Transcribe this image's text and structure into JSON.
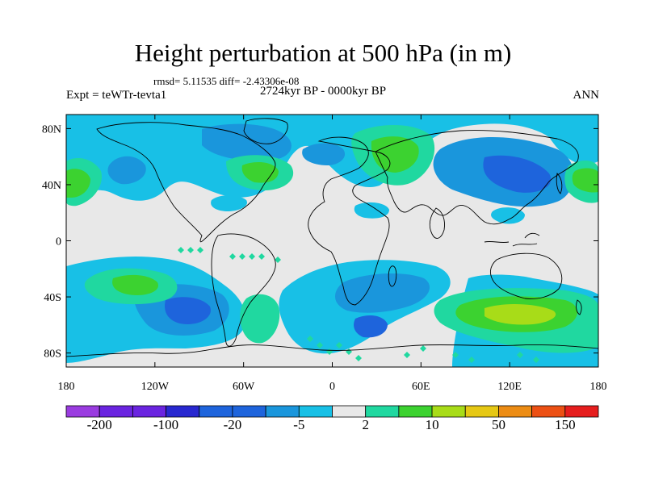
{
  "title": "Height perturbation at 500 hPa (in m)",
  "stats": "rmsd= 5.11535 diff= -2.43306e-08",
  "period": "2724kyr BP - 0000kyr BP",
  "experiment": "Expt = teWTr-tevta1",
  "season": "ANN",
  "colors": {
    "background": "#e8e8e8",
    "n5": "#9a3ce0",
    "n4": "#6a24e0",
    "n3": "#2828d0",
    "n2": "#1e64dc",
    "n1": "#1a96dc",
    "n0": "#18c0e6",
    "p1": "#20d8a0",
    "p2": "#3cd230",
    "p3": "#a8dc18",
    "p4": "#e6c814",
    "p5": "#ec8c14",
    "p6": "#ec5014",
    "p7": "#e61e1e",
    "coast": "#000000"
  },
  "axes": {
    "lon_ticks": [
      "180",
      "120W",
      "60W",
      "0",
      "60E",
      "120E",
      "180"
    ],
    "lat_ticks": [
      "80N",
      "40N",
      "0",
      "40S",
      "80S"
    ]
  },
  "colorbar": {
    "labels": [
      "-200",
      "-100",
      "-20",
      "-5",
      "2",
      "10",
      "50",
      "150"
    ]
  }
}
